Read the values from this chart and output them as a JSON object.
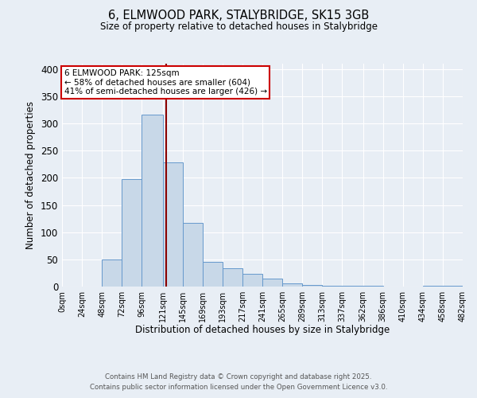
{
  "title": "6, ELMWOOD PARK, STALYBRIDGE, SK15 3GB",
  "subtitle": "Size of property relative to detached houses in Stalybridge",
  "xlabel": "Distribution of detached houses by size in Stalybridge",
  "ylabel": "Number of detached properties",
  "bar_color": "#c8d8e8",
  "bar_edge_color": "#6699cc",
  "background_color": "#e8eef5",
  "grid_color": "#ffffff",
  "vline_x": 125,
  "vline_color": "#8b0000",
  "bin_edges": [
    0,
    24,
    48,
    72,
    96,
    121,
    145,
    169,
    193,
    217,
    241,
    265,
    289,
    313,
    337,
    362,
    386,
    410,
    434,
    458,
    482
  ],
  "bar_heights": [
    0,
    0,
    50,
    197,
    317,
    229,
    117,
    45,
    33,
    23,
    15,
    6,
    3,
    2,
    1,
    1,
    0,
    0,
    1,
    1
  ],
  "annotation_text": "6 ELMWOOD PARK: 125sqm\n← 58% of detached houses are smaller (604)\n41% of semi-detached houses are larger (426) →",
  "annotation_box_color": "#ffffff",
  "annotation_box_edge": "#cc0000",
  "ylim": [
    0,
    410
  ],
  "yticks": [
    0,
    50,
    100,
    150,
    200,
    250,
    300,
    350,
    400
  ],
  "footer_line1": "Contains HM Land Registry data © Crown copyright and database right 2025.",
  "footer_line2": "Contains public sector information licensed under the Open Government Licence v3.0."
}
